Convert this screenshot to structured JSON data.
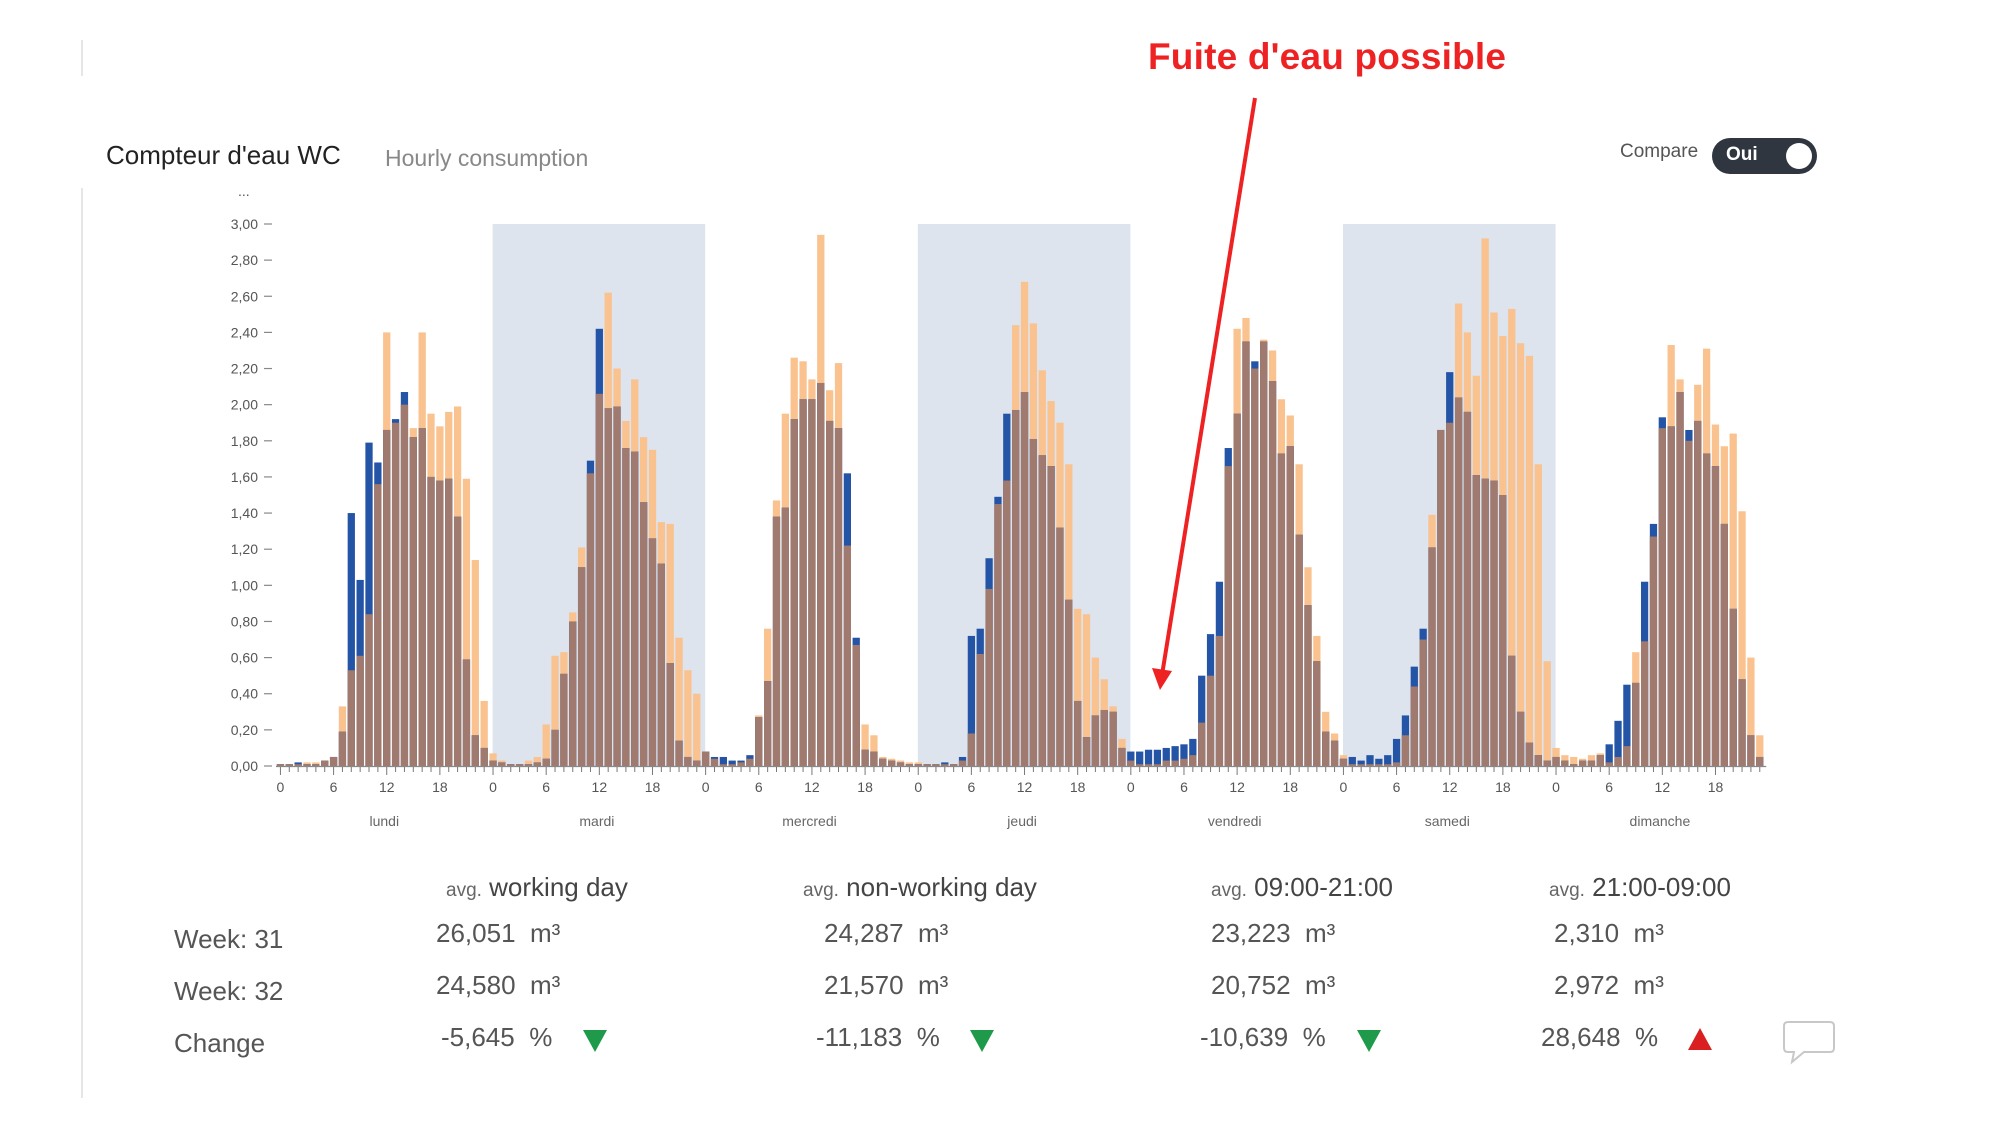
{
  "header": {
    "title": "Compteur d'eau WC",
    "subtitle": "Hourly consumption",
    "compare_label": "Compare",
    "compare_value": "Oui"
  },
  "annotation": {
    "text": "Fuite d'eau possible",
    "color": "#ee2222"
  },
  "colors": {
    "week31": "#f9c28e",
    "week32": "#2454a6",
    "overlap": "#a07a6e",
    "weekend_band": "#dde4ee",
    "down": "#1f9a4a",
    "up": "#d91f1f"
  },
  "chart_data": {
    "type": "bar",
    "unit_label": "...",
    "ylim": [
      0,
      3
    ],
    "y_ticks": [
      "0,00",
      "0,20",
      "0,40",
      "0,60",
      "0,80",
      "1,00",
      "1,20",
      "1,40",
      "1,60",
      "1,80",
      "2,00",
      "2,20",
      "2,40",
      "2,60",
      "2,80",
      "3,00"
    ],
    "x_tick_labels": [
      "0",
      "6",
      "12",
      "18"
    ],
    "days": [
      "lundi",
      "mardi",
      "mercredi",
      "jeudi",
      "vendredi",
      "samedi",
      "dimanche"
    ],
    "shaded_days": [
      1,
      3,
      5
    ],
    "series": [
      {
        "color": "#f9c28e",
        "values": [
          [
            0.01,
            0.01,
            0.01,
            0.02,
            0.02,
            0.03,
            0.05,
            0.33,
            0.53,
            0.61,
            0.84,
            1.56,
            2.4,
            1.9,
            2.0,
            1.87,
            2.4,
            1.95,
            1.88,
            1.96,
            1.99,
            1.59,
            1.14,
            0.36
          ],
          [
            0.07,
            0.03,
            0.01,
            0.01,
            0.03,
            0.05,
            0.23,
            0.61,
            0.63,
            0.85,
            1.21,
            1.62,
            2.06,
            2.62,
            2.2,
            1.91,
            2.14,
            1.82,
            1.75,
            1.35,
            1.34,
            0.71,
            0.53,
            0.4
          ],
          [
            0.08,
            0.04,
            0.01,
            0.01,
            0.02,
            0.04,
            0.28,
            0.76,
            1.47,
            1.95,
            2.26,
            2.24,
            2.14,
            2.94,
            2.08,
            2.23,
            1.22,
            0.67,
            0.23,
            0.17,
            0.05,
            0.04,
            0.03,
            0.02
          ],
          [
            0.02,
            0.01,
            0.01,
            0.01,
            0.01,
            0.03,
            0.18,
            0.62,
            0.98,
            1.45,
            1.58,
            2.44,
            2.68,
            2.45,
            2.19,
            2.02,
            1.9,
            1.67,
            0.87,
            0.84,
            0.6,
            0.48,
            0.33,
            0.15
          ],
          [
            0.03,
            0.01,
            0.01,
            0.01,
            0.03,
            0.03,
            0.04,
            0.06,
            0.24,
            0.5,
            0.72,
            1.66,
            2.42,
            2.48,
            2.2,
            2.36,
            2.3,
            2.03,
            1.94,
            1.67,
            1.1,
            0.72,
            0.3,
            0.18
          ],
          [
            0.06,
            0.01,
            0.01,
            0.01,
            0.01,
            0.01,
            0.02,
            0.17,
            0.44,
            0.7,
            1.39,
            1.86,
            1.9,
            2.56,
            2.4,
            2.16,
            2.92,
            2.51,
            2.38,
            2.53,
            2.34,
            2.27,
            1.67,
            0.58
          ],
          [
            0.1,
            0.06,
            0.05,
            0.04,
            0.06,
            0.07,
            0.02,
            0.05,
            0.11,
            0.63,
            0.69,
            1.27,
            1.87,
            2.33,
            2.14,
            1.8,
            2.11,
            2.31,
            1.89,
            1.77,
            1.84,
            1.41,
            0.6,
            0.17
          ]
        ]
      },
      {
        "color": "#2454a6",
        "values": [
          [
            0.01,
            0.01,
            0.02,
            0.01,
            0.01,
            0.03,
            0.05,
            0.19,
            1.4,
            1.03,
            1.79,
            1.68,
            1.86,
            1.92,
            2.07,
            1.82,
            1.87,
            1.6,
            1.58,
            1.59,
            1.38,
            0.59,
            0.17,
            0.1
          ],
          [
            0.03,
            0.02,
            0.01,
            0.01,
            0.01,
            0.02,
            0.04,
            0.2,
            0.51,
            0.8,
            1.1,
            1.69,
            2.42,
            1.98,
            1.99,
            1.76,
            1.74,
            1.46,
            1.26,
            1.12,
            0.57,
            0.14,
            0.05,
            0.03
          ],
          [
            0.08,
            0.05,
            0.05,
            0.03,
            0.03,
            0.06,
            0.27,
            0.47,
            1.38,
            1.43,
            1.92,
            2.03,
            2.03,
            2.12,
            1.91,
            1.87,
            1.62,
            0.71,
            0.09,
            0.08,
            0.04,
            0.03,
            0.02,
            0.01
          ],
          [
            0.01,
            0.01,
            0.01,
            0.02,
            0.01,
            0.05,
            0.72,
            0.76,
            1.15,
            1.49,
            1.95,
            1.97,
            2.07,
            1.81,
            1.72,
            1.66,
            1.32,
            0.92,
            0.36,
            0.16,
            0.28,
            0.31,
            0.3,
            0.1
          ],
          [
            0.08,
            0.08,
            0.09,
            0.09,
            0.1,
            0.11,
            0.12,
            0.15,
            0.5,
            0.73,
            1.02,
            1.76,
            1.95,
            2.35,
            2.24,
            2.35,
            2.13,
            1.73,
            1.77,
            1.28,
            0.89,
            0.58,
            0.19,
            0.14
          ],
          [
            0.04,
            0.05,
            0.03,
            0.06,
            0.04,
            0.06,
            0.15,
            0.28,
            0.55,
            0.76,
            1.21,
            1.86,
            2.18,
            2.04,
            1.96,
            1.61,
            1.59,
            1.58,
            1.5,
            0.61,
            0.3,
            0.13,
            0.06,
            0.03
          ],
          [
            0.05,
            0.03,
            0.01,
            0.03,
            0.03,
            0.06,
            0.12,
            0.25,
            0.45,
            0.46,
            1.02,
            1.34,
            1.93,
            1.88,
            2.07,
            1.86,
            1.91,
            1.73,
            1.66,
            1.34,
            0.87,
            0.48,
            0.17,
            0.05
          ]
        ]
      }
    ]
  },
  "stats": {
    "avg_prefix": "avg.",
    "columns": [
      "working day",
      "non-working day",
      "09:00-21:00",
      "21:00-09:00"
    ],
    "unit": "m³",
    "pct": "%",
    "rows": [
      {
        "label": "Week: 31",
        "values": [
          "26,051",
          "24,287",
          "23,223",
          "2,310"
        ]
      },
      {
        "label": "Week: 32",
        "values": [
          "24,580",
          "21,570",
          "20,752",
          "2,972"
        ]
      }
    ],
    "change": {
      "label": "Change",
      "values": [
        "-5,645",
        "-11,183",
        "-10,639",
        "28,648"
      ],
      "directions": [
        "down",
        "down",
        "down",
        "up"
      ]
    }
  },
  "icons": {
    "chat": "chat-bubble-icon"
  }
}
